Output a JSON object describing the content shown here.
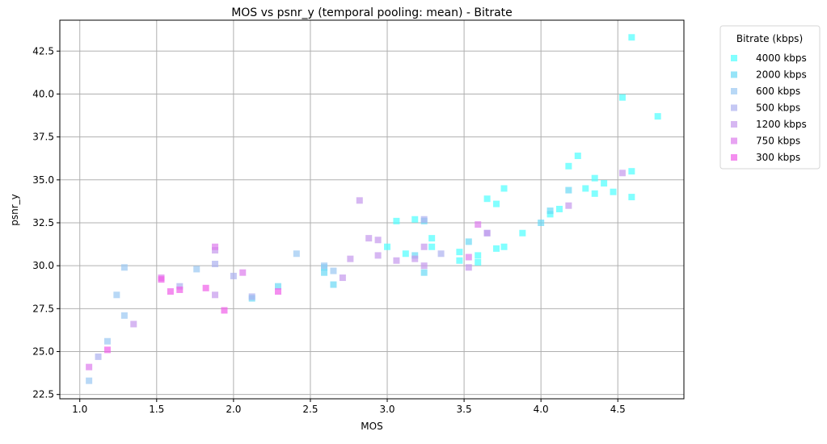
{
  "chart_data": {
    "type": "scatter",
    "title": "MOS vs psnr_y (temporal pooling: mean) - Bitrate",
    "xlabel": "MOS",
    "ylabel": "psnr_y",
    "xlim": [
      0.87,
      4.93
    ],
    "ylim": [
      22.25,
      44.3
    ],
    "xticks": [
      1.0,
      1.5,
      2.0,
      2.5,
      3.0,
      3.5,
      4.0,
      4.5
    ],
    "xtick_labels": [
      "1.0",
      "1.5",
      "2.0",
      "2.5",
      "3.0",
      "3.5",
      "4.0",
      "4.5"
    ],
    "yticks": [
      22.5,
      25.0,
      27.5,
      30.0,
      32.5,
      35.0,
      37.5,
      40.0,
      42.5
    ],
    "ytick_labels": [
      "22.5",
      "25.0",
      "27.5",
      "30.0",
      "32.5",
      "35.0",
      "37.5",
      "40.0",
      "42.5"
    ],
    "grid": true,
    "legend": {
      "title": "Bitrate (kbps)",
      "placement": "outside-top-right"
    },
    "marker": "square",
    "series": [
      {
        "name": "4000 kbps",
        "color": "#4dffff",
        "points": [
          [
            4.59,
            43.3
          ],
          [
            4.53,
            39.8
          ],
          [
            4.76,
            38.7
          ],
          [
            4.59,
            35.5
          ],
          [
            4.59,
            34.0
          ],
          [
            4.41,
            34.8
          ],
          [
            4.35,
            35.1
          ],
          [
            4.35,
            34.2
          ],
          [
            4.29,
            34.5
          ],
          [
            4.47,
            34.3
          ],
          [
            4.24,
            36.4
          ],
          [
            4.18,
            35.8
          ],
          [
            4.12,
            33.3
          ],
          [
            4.06,
            33.0
          ],
          [
            3.76,
            34.5
          ],
          [
            3.65,
            33.9
          ],
          [
            3.71,
            33.6
          ],
          [
            3.88,
            31.9
          ],
          [
            3.76,
            31.1
          ],
          [
            3.71,
            31.0
          ],
          [
            3.59,
            30.6
          ],
          [
            3.59,
            30.2
          ],
          [
            3.47,
            30.8
          ],
          [
            3.47,
            30.3
          ],
          [
            3.29,
            31.6
          ],
          [
            3.29,
            31.1
          ],
          [
            3.12,
            30.7
          ],
          [
            3.06,
            32.6
          ],
          [
            3.0,
            31.1
          ],
          [
            3.18,
            32.7
          ]
        ]
      },
      {
        "name": "2000 kbps",
        "color": "#6ad9f5",
        "points": [
          [
            4.18,
            34.4
          ],
          [
            4.06,
            33.2
          ],
          [
            4.0,
            32.5
          ],
          [
            3.53,
            31.4
          ],
          [
            3.24,
            32.6
          ],
          [
            3.18,
            30.6
          ],
          [
            3.24,
            29.6
          ],
          [
            2.59,
            29.9
          ],
          [
            2.59,
            29.6
          ],
          [
            2.65,
            28.9
          ],
          [
            2.29,
            28.8
          ],
          [
            2.12,
            28.1
          ]
        ]
      },
      {
        "name": "600 kbps",
        "color": "#9ac8f2",
        "points": [
          [
            1.06,
            23.3
          ],
          [
            1.18,
            25.6
          ],
          [
            1.24,
            28.3
          ],
          [
            1.29,
            29.9
          ],
          [
            1.29,
            27.1
          ],
          [
            1.76,
            29.8
          ],
          [
            2.41,
            30.7
          ],
          [
            2.65,
            29.7
          ],
          [
            2.59,
            30.0
          ]
        ]
      },
      {
        "name": "500 kbps",
        "color": "#acb1f0",
        "points": [
          [
            1.12,
            24.7
          ],
          [
            1.65,
            28.8
          ],
          [
            1.88,
            30.1
          ],
          [
            2.0,
            29.4
          ],
          [
            2.12,
            28.2
          ],
          [
            3.24,
            32.7
          ],
          [
            3.65,
            31.9
          ],
          [
            3.35,
            30.7
          ]
        ]
      },
      {
        "name": "1200 kbps",
        "color": "#c599ec",
        "points": [
          [
            1.35,
            26.6
          ],
          [
            1.88,
            30.9
          ],
          [
            1.88,
            28.3
          ],
          [
            2.71,
            29.3
          ],
          [
            2.76,
            30.4
          ],
          [
            2.82,
            33.8
          ],
          [
            2.88,
            31.6
          ],
          [
            2.94,
            31.5
          ],
          [
            2.94,
            30.6
          ],
          [
            3.06,
            30.3
          ],
          [
            3.18,
            30.4
          ],
          [
            3.24,
            30.0
          ],
          [
            3.24,
            31.1
          ],
          [
            3.53,
            29.9
          ],
          [
            3.65,
            31.9
          ],
          [
            4.18,
            33.5
          ],
          [
            4.53,
            35.4
          ]
        ]
      },
      {
        "name": "750 kbps",
        "color": "#dd7cec",
        "points": [
          [
            1.06,
            24.1
          ],
          [
            1.53,
            29.3
          ],
          [
            1.88,
            31.1
          ],
          [
            2.06,
            29.6
          ],
          [
            3.53,
            30.5
          ],
          [
            3.59,
            32.4
          ]
        ]
      },
      {
        "name": "300 kbps",
        "color": "#f05ee8",
        "points": [
          [
            1.18,
            25.1
          ],
          [
            1.53,
            29.2
          ],
          [
            1.59,
            28.5
          ],
          [
            1.65,
            28.6
          ],
          [
            1.82,
            28.7
          ],
          [
            1.94,
            27.4
          ],
          [
            2.29,
            28.5
          ]
        ]
      }
    ]
  }
}
